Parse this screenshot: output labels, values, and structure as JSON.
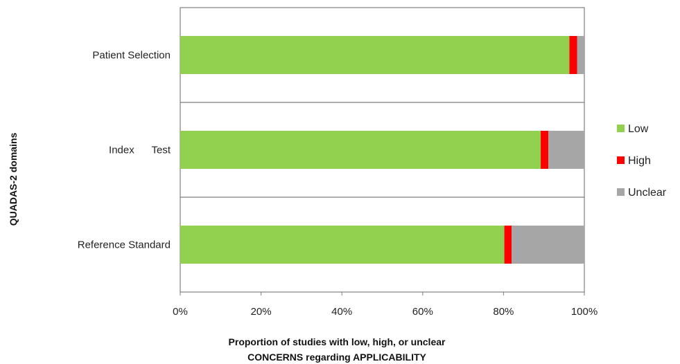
{
  "chart_data": {
    "type": "bar",
    "orientation": "horizontal",
    "stacked": true,
    "categories": [
      "Patient Selection",
      "Index      Test",
      "Reference Standard"
    ],
    "series": [
      {
        "name": "Low",
        "color": "#92d050",
        "values": [
          96.3,
          89.2,
          80.2
        ]
      },
      {
        "name": "High",
        "color": "#ff0000",
        "values": [
          1.9,
          1.9,
          1.8
        ]
      },
      {
        "name": "Unclear",
        "color": "#a6a6a6",
        "values": [
          1.8,
          8.9,
          18.0
        ]
      }
    ],
    "xlim": [
      0,
      100
    ],
    "xticks": [
      "0%",
      "20%",
      "40%",
      "60%",
      "80%",
      "100%"
    ],
    "xlabel": [
      "Proportion of studies with low, high, or unclear",
      "CONCERNS regarding APPLICABILITY"
    ],
    "ylabel": "QUADAS-2 domains",
    "legend_position": "right",
    "grid": false
  }
}
